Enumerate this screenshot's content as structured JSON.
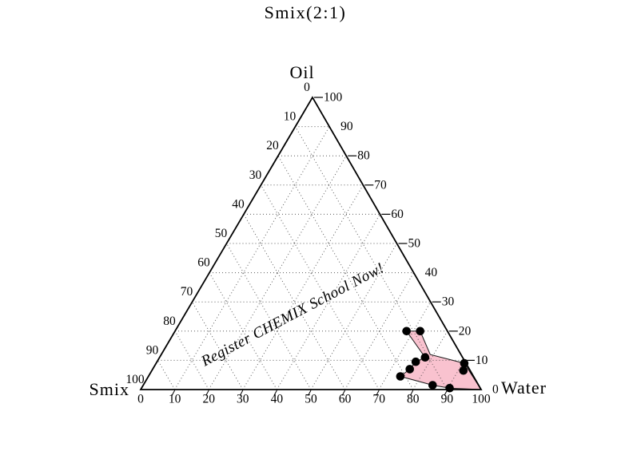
{
  "page": {
    "background_color": "#ffffff"
  },
  "watermark": "Register CHEMIX School Now!",
  "chart_data": {
    "type": "ternary-phase-diagram",
    "title": "Smix(2:1)",
    "vertex_labels": {
      "top": "Oil",
      "bottom_left": "Smix",
      "bottom_right": "Water"
    },
    "axes": {
      "left": {
        "component": "Smix",
        "runs": "top-apex to bottom-left corner",
        "tick_values": [
          0,
          10,
          20,
          30,
          40,
          50,
          60,
          70,
          80,
          90,
          100
        ]
      },
      "right": {
        "component": "Oil",
        "runs": "top-apex to bottom-right corner",
        "tick_values": [
          100,
          90,
          80,
          70,
          60,
          50,
          40,
          30,
          20,
          10,
          0
        ],
        "ticks_with_dash": [
          100,
          80,
          70,
          60,
          50,
          30,
          20,
          10
        ]
      },
      "bottom": {
        "component": "Water",
        "runs": "left to right",
        "tick_values": [
          0,
          10,
          20,
          30,
          40,
          50,
          60,
          70,
          80,
          90,
          100
        ]
      },
      "grid_interval": 10,
      "grid_style": "dotted",
      "grid_color": "#333333"
    },
    "region": {
      "name": "shaded phase region (bottom-right, water-rich corner)",
      "fill_color": "#f9c2cf",
      "outline_color": "#1a1a1a",
      "vertices_ternary": [
        {
          "oil": 20,
          "smix": 12,
          "water": 68
        },
        {
          "oil": 20,
          "smix": 8,
          "water": 72
        },
        {
          "oil": 12,
          "smix": 9,
          "water": 79
        },
        {
          "oil": 9,
          "smix": 0.5,
          "water": 90.5
        },
        {
          "oil": 0,
          "smix": 0,
          "water": 100
        },
        {
          "oil": 0.5,
          "smix": 9,
          "water": 90.5
        },
        {
          "oil": 1.5,
          "smix": 13.5,
          "water": 85
        },
        {
          "oil": 4.5,
          "smix": 21.5,
          "water": 74
        },
        {
          "oil": 7,
          "smix": 17.5,
          "water": 75.5
        },
        {
          "oil": 9.5,
          "smix": 14.5,
          "water": 76
        },
        {
          "oil": 11,
          "smix": 11,
          "water": 78
        }
      ]
    },
    "points": {
      "style": {
        "shape": "circle",
        "color": "#000000",
        "radius_px": 5.3
      },
      "values_ternary": [
        {
          "oil": 20,
          "smix": 12,
          "water": 68
        },
        {
          "oil": 20,
          "smix": 8,
          "water": 72
        },
        {
          "oil": 11,
          "smix": 11,
          "water": 78
        },
        {
          "oil": 9.5,
          "smix": 14.5,
          "water": 76
        },
        {
          "oil": 7,
          "smix": 17.5,
          "water": 75.5
        },
        {
          "oil": 4.5,
          "smix": 21.5,
          "water": 74
        },
        {
          "oil": 1.5,
          "smix": 13.5,
          "water": 85
        },
        {
          "oil": 0.5,
          "smix": 9,
          "water": 90.5
        },
        {
          "oil": 9,
          "smix": 0.5,
          "water": 90.5
        },
        {
          "oil": 6.5,
          "smix": 2,
          "water": 91.5
        }
      ]
    }
  }
}
